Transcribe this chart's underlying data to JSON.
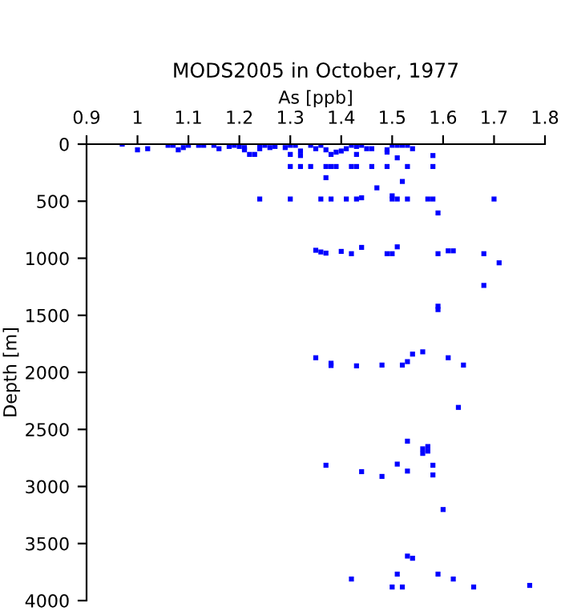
{
  "chart_data": {
    "type": "scatter",
    "title": "MODS2005 in October, 1977",
    "xlabel": "As [ppb]",
    "ylabel": "Depth [m]",
    "x": [
      0.97,
      1.0,
      1.02,
      1.06,
      1.07,
      1.08,
      1.09,
      1.1,
      1.12,
      1.13,
      1.15,
      1.16,
      1.18,
      1.19,
      1.2,
      1.21,
      1.21,
      1.22,
      1.23,
      1.24,
      1.24,
      1.25,
      1.26,
      1.27,
      1.29,
      1.3,
      1.3,
      1.31,
      1.32,
      1.32,
      1.34,
      1.35,
      1.36,
      1.37,
      1.38,
      1.39,
      1.4,
      1.41,
      1.42,
      1.43,
      1.43,
      1.44,
      1.45,
      1.46,
      1.49,
      1.49,
      1.5,
      1.51,
      1.51,
      1.52,
      1.53,
      1.54,
      1.58,
      1.3,
      1.32,
      1.34,
      1.37,
      1.38,
      1.39,
      1.42,
      1.43,
      1.46,
      1.49,
      1.53,
      1.58,
      1.37,
      1.52,
      1.47,
      1.5,
      1.24,
      1.3,
      1.36,
      1.38,
      1.41,
      1.43,
      1.44,
      1.5,
      1.51,
      1.53,
      1.57,
      1.58,
      1.7,
      1.59,
      1.35,
      1.36,
      1.37,
      1.4,
      1.42,
      1.44,
      1.49,
      1.5,
      1.51,
      1.59,
      1.61,
      1.62,
      1.68,
      1.71,
      1.68,
      1.59,
      1.59,
      1.35,
      1.38,
      1.38,
      1.43,
      1.48,
      1.52,
      1.53,
      1.54,
      1.56,
      1.61,
      1.64,
      1.63,
      1.53,
      1.56,
      1.57,
      1.37,
      1.44,
      1.48,
      1.51,
      1.53,
      1.58,
      1.58,
      1.56,
      1.57,
      1.6,
      1.53,
      1.54,
      1.42,
      1.51,
      1.59,
      1.5,
      1.52,
      1.62,
      1.66,
      1.77
    ],
    "values": [
      0,
      50,
      40,
      10,
      10,
      50,
      30,
      10,
      10,
      10,
      10,
      40,
      20,
      10,
      20,
      30,
      50,
      90,
      90,
      10,
      40,
      10,
      30,
      20,
      30,
      10,
      90,
      10,
      60,
      100,
      10,
      40,
      10,
      50,
      90,
      70,
      60,
      40,
      10,
      20,
      90,
      10,
      40,
      40,
      50,
      70,
      10,
      10,
      120,
      10,
      10,
      40,
      100,
      196,
      196,
      196,
      196,
      196,
      196,
      196,
      196,
      196,
      196,
      196,
      196,
      294,
      327,
      383,
      453,
      481,
      481,
      481,
      481,
      481,
      481,
      470,
      481,
      481,
      481,
      481,
      481,
      481,
      603,
      930,
      945,
      955,
      940,
      960,
      905,
      960,
      960,
      900,
      960,
      935,
      935,
      960,
      1040,
      1238,
      1420,
      1450,
      1872,
      1920,
      1940,
      1943,
      1936,
      1936,
      1906,
      1840,
      1820,
      1872,
      1936,
      2307,
      2603,
      2670,
      2650,
      2814,
      2870,
      2912,
      2804,
      2865,
      2814,
      2899,
      2710,
      2690,
      3202,
      3610,
      3629,
      3811,
      3768,
      3768,
      3881,
      3881,
      3811,
      3881,
      3867
    ],
    "color": "#0000ff",
    "marker": "square",
    "xlim": [
      0.9,
      1.8
    ],
    "xticks": [
      0.9,
      1,
      1.1,
      1.2,
      1.3,
      1.4,
      1.5,
      1.6,
      1.7,
      1.8
    ],
    "ylim": [
      4000,
      0
    ],
    "yticks": [
      0,
      500,
      1000,
      1500,
      2000,
      2500,
      3000,
      3500,
      4000
    ],
    "grid": false,
    "legend": false
  }
}
